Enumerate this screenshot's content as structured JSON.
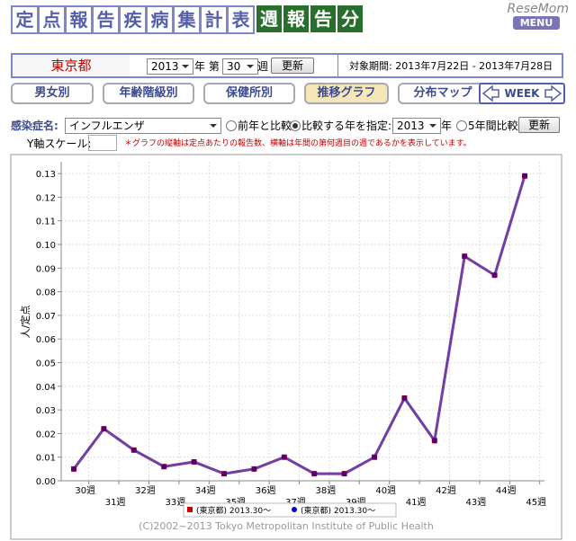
{
  "header": {
    "title": [
      "定",
      "点",
      "報",
      "告",
      "疾",
      "病",
      "集",
      "計",
      "表"
    ],
    "subtitle": [
      "週",
      "報",
      "告",
      "分"
    ],
    "logo": "ReseMom",
    "menu": "MENU"
  },
  "controls": {
    "region": "東京都",
    "year": "2013",
    "year_unit": "年 第",
    "week": "30",
    "week_unit": "週",
    "update": "更新",
    "period": "対象期間: 2013年7月22日 - 2013年7月28日"
  },
  "tabs": [
    "男女別",
    "年齢階級別",
    "保健所別",
    "推移グラフ",
    "分布マップ"
  ],
  "active_tab": 3,
  "week_nav": "WEEK",
  "filters": {
    "disease_label": "感染症名:",
    "disease": "インフルエンザ",
    "compare_prev": "前年と比較",
    "compare_year": "比較する年を指定:",
    "compare_year_value": "2013",
    "year_unit": "年",
    "five_year": "5年間比較",
    "update": "更新",
    "y_scale_label": "Y軸スケール:",
    "note": "＊グラフの縦軸は定点あたりの報告数、横軸は年間の第何週目の週であるかを表示しています。"
  },
  "chart_data": {
    "type": "line",
    "y_label": "人/定点",
    "categories": [
      "30週",
      "31週",
      "32週",
      "33週",
      "34週",
      "35週",
      "36週",
      "37週",
      "38週",
      "39週",
      "40週",
      "41週",
      "42週",
      "43週",
      "44週",
      "45週"
    ],
    "series": [
      {
        "name": "(東京都) 2013.30～",
        "color": "#cc0000",
        "marker": "square",
        "values": [
          0.005,
          0.022,
          0.013,
          0.006,
          0.008,
          0.003,
          0.005,
          0.01,
          0.003,
          0.003,
          0.01,
          0.035,
          0.017,
          0.095,
          0.087,
          0.129
        ]
      },
      {
        "name": "(東京都) 2013.30～",
        "color": "#0000cc",
        "marker": "circle",
        "values": [
          0.005,
          0.022,
          0.013,
          0.006,
          0.008,
          0.003,
          0.005,
          0.01,
          0.003,
          0.003,
          0.01,
          0.035,
          0.017,
          0.095,
          0.087,
          0.129
        ]
      }
    ],
    "ylim": [
      0,
      0.135
    ],
    "yticks": [
      {
        "value": 0,
        "label": "0.00"
      },
      {
        "value": 0.01,
        "label": "0.01"
      },
      {
        "value": 0.02,
        "label": "0.02"
      },
      {
        "value": 0.03,
        "label": "0.03"
      },
      {
        "value": 0.04,
        "label": "0.04"
      },
      {
        "value": 0.05,
        "label": "0.05"
      },
      {
        "value": 0.06,
        "label": "0.06"
      },
      {
        "value": 0.07,
        "label": "0.07"
      },
      {
        "value": 0.08,
        "label": "0.08"
      },
      {
        "value": 0.09,
        "label": "0.09"
      },
      {
        "value": 0.1,
        "label": "0.10"
      },
      {
        "value": 0.11,
        "label": "0.11"
      },
      {
        "value": 0.12,
        "label": "0.12"
      },
      {
        "value": 0.13,
        "label": "0.13"
      }
    ],
    "grid": true
  },
  "footer": "(C)2002~2013 Tokyo Metropolitan Institute of Public Health"
}
